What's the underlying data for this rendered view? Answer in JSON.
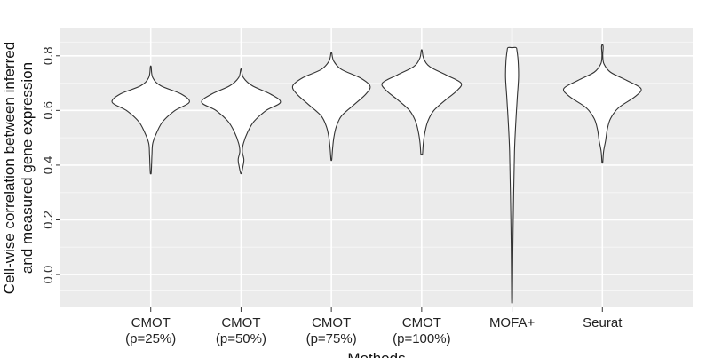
{
  "chart_data": {
    "type": "violin",
    "xlabel": "Methods",
    "ylabel": [
      "Cell-wise correlation between inferred",
      "and measured gene expression"
    ],
    "ylim": [
      -0.12,
      0.9
    ],
    "yticks": [
      "0.0",
      "0.2",
      "0.4",
      "0.6",
      "0.8"
    ],
    "y_tick_values": [
      0.0,
      0.2,
      0.4,
      0.6,
      0.8
    ],
    "grid": true,
    "categories": [
      [
        "CMOT",
        "(p=25%)"
      ],
      [
        "CMOT",
        "(p=50%)"
      ],
      [
        "CMOT",
        "(p=75%)"
      ],
      [
        "CMOT",
        "(p=100%)"
      ],
      [
        "MOFA+"
      ],
      [
        "Seurat"
      ]
    ],
    "violins": [
      {
        "min": 0.37,
        "max": 0.76,
        "profile": [
          [
            0.37,
            0.01
          ],
          [
            0.4,
            0.02
          ],
          [
            0.44,
            0.03
          ],
          [
            0.48,
            0.05
          ],
          [
            0.52,
            0.15
          ],
          [
            0.56,
            0.3
          ],
          [
            0.6,
            0.6
          ],
          [
            0.63,
            0.95
          ],
          [
            0.66,
            0.75
          ],
          [
            0.69,
            0.25
          ],
          [
            0.72,
            0.05
          ],
          [
            0.76,
            0.01
          ]
        ]
      },
      {
        "min": 0.37,
        "max": 0.75,
        "profile": [
          [
            0.37,
            0.01
          ],
          [
            0.39,
            0.04
          ],
          [
            0.42,
            0.07
          ],
          [
            0.45,
            0.03
          ],
          [
            0.48,
            0.06
          ],
          [
            0.52,
            0.16
          ],
          [
            0.56,
            0.32
          ],
          [
            0.6,
            0.62
          ],
          [
            0.63,
            0.97
          ],
          [
            0.66,
            0.72
          ],
          [
            0.69,
            0.28
          ],
          [
            0.72,
            0.06
          ],
          [
            0.75,
            0.01
          ]
        ]
      },
      {
        "min": 0.42,
        "max": 0.81,
        "profile": [
          [
            0.42,
            0.01
          ],
          [
            0.46,
            0.03
          ],
          [
            0.5,
            0.06
          ],
          [
            0.54,
            0.12
          ],
          [
            0.58,
            0.25
          ],
          [
            0.62,
            0.55
          ],
          [
            0.66,
            0.85
          ],
          [
            0.69,
            0.95
          ],
          [
            0.72,
            0.7
          ],
          [
            0.75,
            0.25
          ],
          [
            0.78,
            0.06
          ],
          [
            0.81,
            0.01
          ]
        ]
      },
      {
        "min": 0.44,
        "max": 0.82,
        "profile": [
          [
            0.44,
            0.02
          ],
          [
            0.48,
            0.04
          ],
          [
            0.52,
            0.08
          ],
          [
            0.56,
            0.15
          ],
          [
            0.6,
            0.3
          ],
          [
            0.64,
            0.6
          ],
          [
            0.67,
            0.85
          ],
          [
            0.7,
            0.97
          ],
          [
            0.73,
            0.6
          ],
          [
            0.76,
            0.2
          ],
          [
            0.79,
            0.05
          ],
          [
            0.82,
            0.01
          ]
        ]
      },
      {
        "min": -0.09,
        "max": 0.83,
        "profile": [
          [
            -0.09,
            0.01
          ],
          [
            0.1,
            0.02
          ],
          [
            0.3,
            0.04
          ],
          [
            0.45,
            0.06
          ],
          [
            0.55,
            0.09
          ],
          [
            0.65,
            0.13
          ],
          [
            0.72,
            0.16
          ],
          [
            0.78,
            0.15
          ],
          [
            0.82,
            0.12
          ],
          [
            0.83,
            0.1
          ]
        ]
      },
      {
        "min": 0.41,
        "max": 0.84,
        "profile": [
          [
            0.41,
            0.01
          ],
          [
            0.45,
            0.03
          ],
          [
            0.49,
            0.08
          ],
          [
            0.53,
            0.12
          ],
          [
            0.57,
            0.2
          ],
          [
            0.61,
            0.4
          ],
          [
            0.65,
            0.8
          ],
          [
            0.68,
            0.95
          ],
          [
            0.71,
            0.6
          ],
          [
            0.74,
            0.2
          ],
          [
            0.77,
            0.04
          ],
          [
            0.8,
            0.01
          ],
          [
            0.83,
            0.02
          ],
          [
            0.84,
            0.01
          ]
        ]
      }
    ],
    "colors": {
      "panel": "#ebebeb",
      "grid_major": "#ffffff",
      "violin_fill": "#ffffff",
      "violin_stroke": "#333333"
    }
  }
}
